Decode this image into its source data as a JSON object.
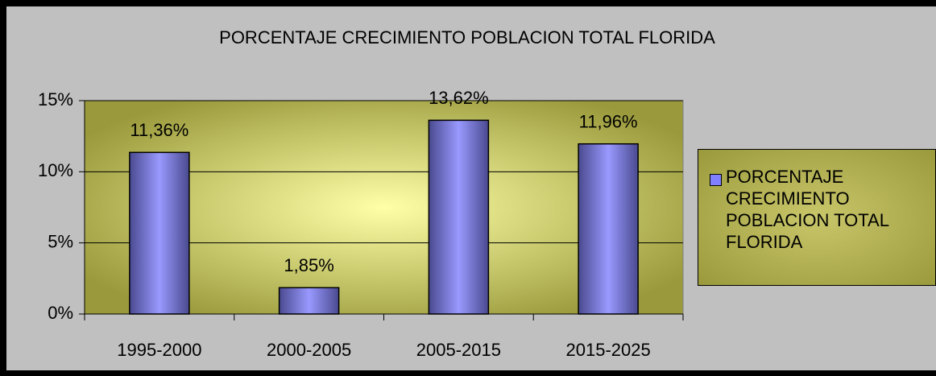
{
  "chart_data": {
    "type": "bar",
    "title": "PORCENTAJE CRECIMIENTO POBLACION TOTAL FLORIDA",
    "categories": [
      "1995-2000",
      "2000-2005",
      "2005-2015",
      "2015-2025"
    ],
    "series": [
      {
        "name": "PORCENTAJE CRECIMIENTO POBLACION TOTAL FLORIDA",
        "color": "#8080ff",
        "values": [
          11.36,
          1.85,
          13.62,
          11.96
        ],
        "value_labels": [
          "11,36%",
          "1,85%",
          "13,62%",
          "11,96%"
        ]
      }
    ],
    "ylim": [
      0,
      15
    ],
    "yticks": [
      {
        "value": 0,
        "label": "0%"
      },
      {
        "value": 5,
        "label": "5%"
      },
      {
        "value": 10,
        "label": "10%"
      },
      {
        "value": 15,
        "label": "15%"
      }
    ],
    "grid": true,
    "legend": "right"
  }
}
